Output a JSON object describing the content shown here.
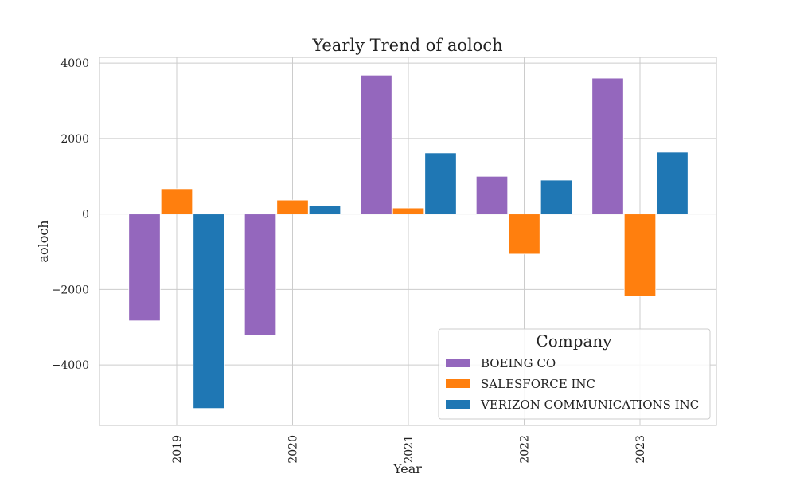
{
  "chart_data": {
    "type": "bar",
    "title": "Yearly Trend of aoloch",
    "xlabel": "Year",
    "ylabel": "aoloch",
    "categories": [
      "2019",
      "2020",
      "2021",
      "2022",
      "2023"
    ],
    "ylim": [
      -5600,
      4150
    ],
    "yticks": [
      4000,
      2000,
      0,
      -2000,
      -4000
    ],
    "ytick_labels": [
      "4000",
      "2000",
      "0",
      "−2000",
      "−4000"
    ],
    "grid": true,
    "legend": {
      "title": "Company",
      "placement": "lower-right"
    },
    "series": [
      {
        "name": "BOEING CO",
        "color": "#9467bd",
        "values": [
          -2830,
          -3220,
          3680,
          1000,
          3600
        ]
      },
      {
        "name": "SALESFORCE INC",
        "color": "#ff7f0e",
        "values": [
          670,
          370,
          160,
          -1060,
          -2180
        ]
      },
      {
        "name": "VERIZON COMMUNICATIONS INC",
        "color": "#1f77b4",
        "values": [
          -5150,
          220,
          1620,
          900,
          1640
        ]
      }
    ]
  }
}
